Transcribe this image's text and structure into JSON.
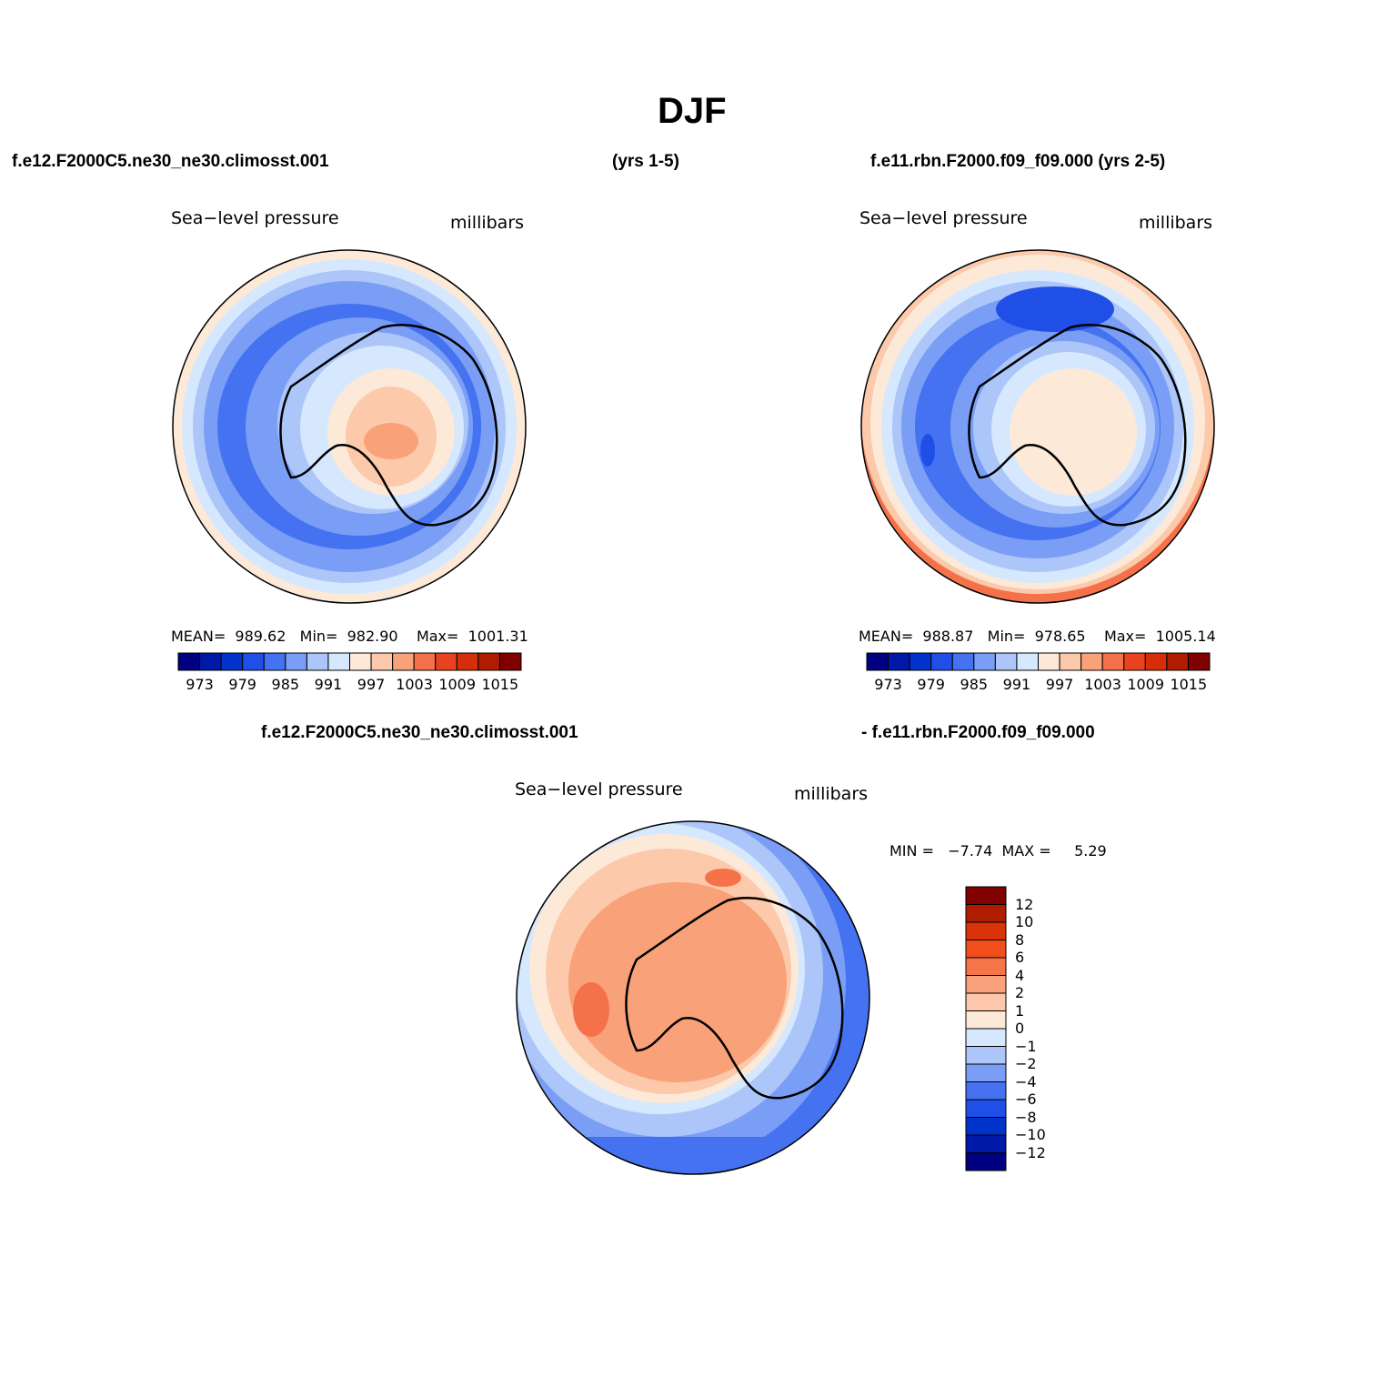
{
  "figure": {
    "title": "DJF",
    "case1_left": "f.e12.F2000C5.ne30_ne30.climosst.001",
    "case1_years": "(yrs 1-5)",
    "case2": "f.e11.rbn.F2000.f09_f09.000 (yrs 2-5)",
    "diff_left": "f.e12.F2000C5.ne30_ne30.climosst.001",
    "diff_right": "- f.e11.rbn.F2000.f09_f09.000"
  },
  "panels": [
    {
      "variable": "Sea−level pressure",
      "units": "millibars",
      "stats": "MEAN=  989.62   Min=  982.90    Max=  1001.31"
    },
    {
      "variable": "Sea−level pressure",
      "units": "millibars",
      "stats": "MEAN=  988.87   Min=  978.65    Max=  1005.14"
    },
    {
      "variable": "Sea−level pressure",
      "units": "millibars",
      "stats": "MIN =   −7.74  MAX =     5.29"
    }
  ],
  "colorbar_abs": {
    "colors": [
      "#000080",
      "#0019a8",
      "#0033cc",
      "#1f4fe6",
      "#4472f0",
      "#7a9ef5",
      "#adc6fa",
      "#d6e8fd",
      "#fde9d8",
      "#fcc9aa",
      "#f9a178",
      "#f5714a",
      "#e8431c",
      "#d62e08",
      "#b01c00",
      "#800000"
    ],
    "labels": [
      "973",
      "979",
      "985",
      "991",
      "997",
      "1003",
      "1009",
      "1015"
    ]
  },
  "colorbar_diff": {
    "colors": [
      "#800000",
      "#b01c00",
      "#d9330a",
      "#f24e1c",
      "#f5744a",
      "#f9a17a",
      "#fcc7aa",
      "#fde9d8",
      "#d6e8fd",
      "#adc6fa",
      "#7a9ef5",
      "#4472f0",
      "#1f4fe6",
      "#0033cc",
      "#0019a8",
      "#000080"
    ],
    "labels": [
      "12",
      "10",
      "8",
      "6",
      "4",
      "2",
      "1",
      "0",
      "−1",
      "−2",
      "−4",
      "−6",
      "−8",
      "−10",
      "−12"
    ]
  }
}
